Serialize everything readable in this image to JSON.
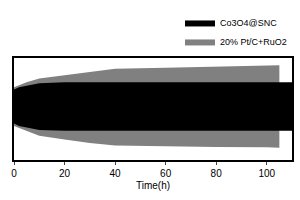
{
  "chart_data": {
    "type": "band",
    "x_label": "Time(h)",
    "xlim": [
      0,
      110
    ],
    "xticks": [
      0,
      20,
      40,
      60,
      80,
      100
    ],
    "ylim": [
      0.5,
      2.6
    ],
    "tick_labels": "x",
    "legend": "top right",
    "series": [
      {
        "name": "Co3O4@SNC",
        "color": "#000000",
        "x": [
          0,
          2,
          10,
          20,
          40,
          60,
          80,
          100,
          110
        ],
        "upper": [
          1.95,
          2.0,
          2.08,
          2.1,
          2.1,
          2.1,
          2.1,
          2.1,
          2.1
        ],
        "lower": [
          1.25,
          1.2,
          1.12,
          1.1,
          1.1,
          1.1,
          1.1,
          1.1,
          1.1
        ]
      },
      {
        "name": "20% Pt/C+RuO2",
        "color": "#808080",
        "x": [
          0,
          5,
          10,
          20,
          30,
          40,
          60,
          80,
          100,
          105
        ],
        "upper": [
          2.0,
          2.1,
          2.18,
          2.25,
          2.32,
          2.38,
          2.4,
          2.42,
          2.44,
          2.45
        ],
        "lower": [
          1.2,
          1.1,
          1.0,
          0.92,
          0.85,
          0.8,
          0.78,
          0.77,
          0.76,
          0.75
        ]
      }
    ]
  }
}
